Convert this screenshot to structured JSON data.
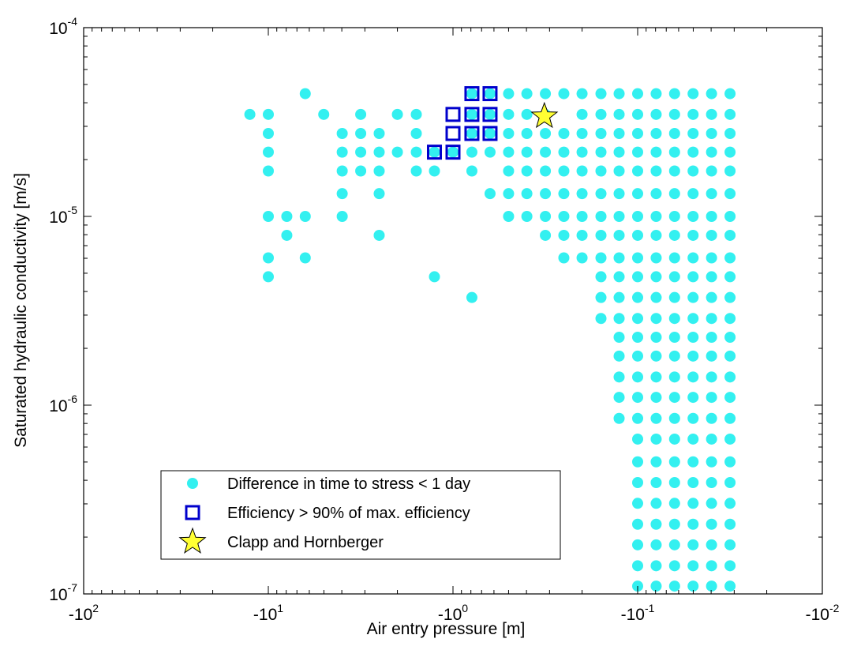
{
  "chart_data": {
    "type": "scatter",
    "xlabel": "Air entry pressure [m]",
    "ylabel": "Saturated hydraulic conductivity [m/s]",
    "x_scale": "log (negative values)",
    "y_scale": "log",
    "xlim": [
      -100,
      -0.01
    ],
    "ylim": [
      1e-07,
      0.0001
    ],
    "x_ticks": [
      {
        "base": "-10",
        "exp": "2",
        "value": -100
      },
      {
        "base": "-10",
        "exp": "1",
        "value": -10
      },
      {
        "base": "-10",
        "exp": "0",
        "value": -1
      },
      {
        "base": "-10",
        "exp": "-1",
        "value": -0.1
      },
      {
        "base": "-10",
        "exp": "-2",
        "value": -0.01
      }
    ],
    "y_ticks": [
      {
        "base": "10",
        "exp": "-4",
        "value": 0.0001
      },
      {
        "base": "10",
        "exp": "-5",
        "value": 1e-05
      },
      {
        "base": "10",
        "exp": "-6",
        "value": 1e-06
      },
      {
        "base": "10",
        "exp": "-7",
        "value": 1e-07
      }
    ],
    "grid": false,
    "legend_position": "bottom-left",
    "series": [
      {
        "name": "Difference in time to stress < 1 day",
        "marker": "filled-circle",
        "color": "#33f0f0",
        "points": [
          [
            -12.59,
            3.47e-05
          ],
          [
            -10,
            3.47e-05
          ],
          [
            -10,
            2.75e-05
          ],
          [
            -10,
            2.19e-05
          ],
          [
            -10,
            1.74e-05
          ],
          [
            -10,
            1e-05
          ],
          [
            -10,
            6.03e-06
          ],
          [
            -10,
            4.79e-06
          ],
          [
            -7.94,
            1e-05
          ],
          [
            -7.94,
            7.94e-06
          ],
          [
            -6.31,
            4.47e-05
          ],
          [
            -6.31,
            1e-05
          ],
          [
            -6.31,
            6.03e-06
          ],
          [
            -5.01,
            3.47e-05
          ],
          [
            -3.98,
            2.75e-05
          ],
          [
            -3.98,
            2.19e-05
          ],
          [
            -3.98,
            1.74e-05
          ],
          [
            -3.98,
            1.32e-05
          ],
          [
            -3.98,
            1e-05
          ],
          [
            -3.16,
            3.47e-05
          ],
          [
            -3.16,
            2.75e-05
          ],
          [
            -3.16,
            2.19e-05
          ],
          [
            -3.16,
            1.74e-05
          ],
          [
            -2.51,
            2.75e-05
          ],
          [
            -2.51,
            2.19e-05
          ],
          [
            -2.51,
            1.74e-05
          ],
          [
            -2.51,
            1.32e-05
          ],
          [
            -2.51,
            7.94e-06
          ],
          [
            -2.0,
            3.47e-05
          ],
          [
            -2.0,
            2.19e-05
          ],
          [
            -1.58,
            3.47e-05
          ],
          [
            -1.58,
            2.75e-05
          ],
          [
            -1.58,
            2.19e-05
          ],
          [
            -1.58,
            1.74e-05
          ],
          [
            -1.26,
            2.19e-05
          ],
          [
            -1.26,
            1.74e-05
          ],
          [
            -1.26,
            4.79e-06
          ],
          [
            -1.0,
            2.19e-05
          ],
          [
            -0.79,
            4.47e-05
          ],
          [
            -0.79,
            3.47e-05
          ],
          [
            -0.79,
            2.75e-05
          ],
          [
            -0.79,
            2.19e-05
          ],
          [
            -0.79,
            1.74e-05
          ],
          [
            -0.79,
            3.72e-06
          ],
          [
            -0.63,
            4.47e-05
          ],
          [
            -0.63,
            3.47e-05
          ],
          [
            -0.63,
            2.75e-05
          ],
          [
            -0.63,
            2.19e-05
          ],
          [
            -0.63,
            1.32e-05
          ],
          [
            -0.5,
            4.47e-05
          ],
          [
            -0.5,
            3.47e-05
          ],
          [
            -0.5,
            2.75e-05
          ],
          [
            -0.5,
            2.19e-05
          ],
          [
            -0.5,
            1.74e-05
          ],
          [
            -0.5,
            1.32e-05
          ],
          [
            -0.5,
            1e-05
          ],
          [
            -0.398,
            4.47e-05
          ],
          [
            -0.398,
            3.47e-05
          ],
          [
            -0.398,
            2.75e-05
          ],
          [
            -0.398,
            2.19e-05
          ],
          [
            -0.398,
            1.74e-05
          ],
          [
            -0.398,
            1.32e-05
          ],
          [
            -0.398,
            1e-05
          ],
          [
            -0.316,
            4.47e-05
          ],
          [
            -0.316,
            3.47e-05
          ],
          [
            -0.316,
            2.75e-05
          ],
          [
            -0.316,
            2.19e-05
          ],
          [
            -0.316,
            1.74e-05
          ],
          [
            -0.316,
            1.32e-05
          ],
          [
            -0.316,
            1e-05
          ],
          [
            -0.316,
            7.94e-06
          ],
          [
            -0.251,
            4.47e-05
          ],
          [
            -0.251,
            2.75e-05
          ],
          [
            -0.251,
            2.19e-05
          ],
          [
            -0.251,
            1.74e-05
          ],
          [
            -0.251,
            1.32e-05
          ],
          [
            -0.251,
            1e-05
          ],
          [
            -0.251,
            7.94e-06
          ],
          [
            -0.251,
            6.03e-06
          ],
          [
            -0.2,
            4.47e-05
          ],
          [
            -0.2,
            3.47e-05
          ],
          [
            -0.2,
            2.75e-05
          ],
          [
            -0.2,
            2.19e-05
          ],
          [
            -0.2,
            1.74e-05
          ],
          [
            -0.2,
            1.32e-05
          ],
          [
            -0.2,
            1e-05
          ],
          [
            -0.2,
            7.94e-06
          ],
          [
            -0.2,
            6.03e-06
          ],
          [
            -0.158,
            4.47e-05
          ],
          [
            -0.158,
            3.47e-05
          ],
          [
            -0.158,
            2.75e-05
          ],
          [
            -0.158,
            2.19e-05
          ],
          [
            -0.158,
            1.74e-05
          ],
          [
            -0.158,
            1.32e-05
          ],
          [
            -0.158,
            1e-05
          ],
          [
            -0.158,
            7.94e-06
          ],
          [
            -0.158,
            6.03e-06
          ],
          [
            -0.158,
            4.79e-06
          ],
          [
            -0.158,
            3.72e-06
          ],
          [
            -0.158,
            2.88e-06
          ],
          [
            -0.126,
            4.47e-05
          ],
          [
            -0.126,
            3.47e-05
          ],
          [
            -0.126,
            2.75e-05
          ],
          [
            -0.126,
            2.19e-05
          ],
          [
            -0.126,
            1.74e-05
          ],
          [
            -0.126,
            1.32e-05
          ],
          [
            -0.126,
            1e-05
          ],
          [
            -0.126,
            7.94e-06
          ],
          [
            -0.126,
            6.03e-06
          ],
          [
            -0.126,
            4.79e-06
          ],
          [
            -0.126,
            3.72e-06
          ],
          [
            -0.126,
            2.88e-06
          ],
          [
            -0.126,
            2.29e-06
          ],
          [
            -0.126,
            1.82e-06
          ],
          [
            -0.126,
            1.41e-06
          ],
          [
            -0.126,
            1.1e-06
          ],
          [
            -0.126,
            8.51e-07
          ],
          [
            -0.1,
            4.47e-05
          ],
          [
            -0.1,
            3.47e-05
          ],
          [
            -0.1,
            2.75e-05
          ],
          [
            -0.1,
            2.19e-05
          ],
          [
            -0.1,
            1.74e-05
          ],
          [
            -0.1,
            1.32e-05
          ],
          [
            -0.1,
            1e-05
          ],
          [
            -0.1,
            7.94e-06
          ],
          [
            -0.1,
            6.03e-06
          ],
          [
            -0.1,
            4.79e-06
          ],
          [
            -0.1,
            3.72e-06
          ],
          [
            -0.1,
            2.88e-06
          ],
          [
            -0.1,
            2.29e-06
          ],
          [
            -0.1,
            1.82e-06
          ],
          [
            -0.1,
            1.41e-06
          ],
          [
            -0.1,
            1.1e-06
          ],
          [
            -0.1,
            8.51e-07
          ],
          [
            -0.1,
            6.61e-07
          ],
          [
            -0.1,
            5.01e-07
          ],
          [
            -0.1,
            3.89e-07
          ],
          [
            -0.1,
            3.02e-07
          ],
          [
            -0.1,
            2.34e-07
          ],
          [
            -0.1,
            1.82e-07
          ],
          [
            -0.1,
            1.41e-07
          ],
          [
            -0.1,
            1.1e-07
          ],
          [
            -0.0794,
            4.47e-05
          ],
          [
            -0.0794,
            3.47e-05
          ],
          [
            -0.0794,
            2.75e-05
          ],
          [
            -0.0794,
            2.19e-05
          ],
          [
            -0.0794,
            1.74e-05
          ],
          [
            -0.0794,
            1.32e-05
          ],
          [
            -0.0794,
            1e-05
          ],
          [
            -0.0794,
            7.94e-06
          ],
          [
            -0.0794,
            6.03e-06
          ],
          [
            -0.0794,
            4.79e-06
          ],
          [
            -0.0794,
            3.72e-06
          ],
          [
            -0.0794,
            2.88e-06
          ],
          [
            -0.0794,
            2.29e-06
          ],
          [
            -0.0794,
            1.82e-06
          ],
          [
            -0.0794,
            1.41e-06
          ],
          [
            -0.0794,
            1.1e-06
          ],
          [
            -0.0794,
            8.51e-07
          ],
          [
            -0.0794,
            6.61e-07
          ],
          [
            -0.0794,
            5.01e-07
          ],
          [
            -0.0794,
            3.89e-07
          ],
          [
            -0.0794,
            3.02e-07
          ],
          [
            -0.0794,
            2.34e-07
          ],
          [
            -0.0794,
            1.82e-07
          ],
          [
            -0.0794,
            1.41e-07
          ],
          [
            -0.0794,
            1.1e-07
          ],
          [
            -0.0631,
            4.47e-05
          ],
          [
            -0.0631,
            3.47e-05
          ],
          [
            -0.0631,
            2.75e-05
          ],
          [
            -0.0631,
            2.19e-05
          ],
          [
            -0.0631,
            1.74e-05
          ],
          [
            -0.0631,
            1.32e-05
          ],
          [
            -0.0631,
            1e-05
          ],
          [
            -0.0631,
            7.94e-06
          ],
          [
            -0.0631,
            6.03e-06
          ],
          [
            -0.0631,
            4.79e-06
          ],
          [
            -0.0631,
            3.72e-06
          ],
          [
            -0.0631,
            2.88e-06
          ],
          [
            -0.0631,
            2.29e-06
          ],
          [
            -0.0631,
            1.82e-06
          ],
          [
            -0.0631,
            1.41e-06
          ],
          [
            -0.0631,
            1.1e-06
          ],
          [
            -0.0631,
            8.51e-07
          ],
          [
            -0.0631,
            6.61e-07
          ],
          [
            -0.0631,
            5.01e-07
          ],
          [
            -0.0631,
            3.89e-07
          ],
          [
            -0.0631,
            3.02e-07
          ],
          [
            -0.0631,
            2.34e-07
          ],
          [
            -0.0631,
            1.82e-07
          ],
          [
            -0.0631,
            1.41e-07
          ],
          [
            -0.0631,
            1.1e-07
          ],
          [
            -0.0501,
            4.47e-05
          ],
          [
            -0.0501,
            3.47e-05
          ],
          [
            -0.0501,
            2.75e-05
          ],
          [
            -0.0501,
            2.19e-05
          ],
          [
            -0.0501,
            1.74e-05
          ],
          [
            -0.0501,
            1.32e-05
          ],
          [
            -0.0501,
            1e-05
          ],
          [
            -0.0501,
            7.94e-06
          ],
          [
            -0.0501,
            6.03e-06
          ],
          [
            -0.0501,
            4.79e-06
          ],
          [
            -0.0501,
            3.72e-06
          ],
          [
            -0.0501,
            2.88e-06
          ],
          [
            -0.0501,
            2.29e-06
          ],
          [
            -0.0501,
            1.82e-06
          ],
          [
            -0.0501,
            1.41e-06
          ],
          [
            -0.0501,
            1.1e-06
          ],
          [
            -0.0501,
            8.51e-07
          ],
          [
            -0.0501,
            6.61e-07
          ],
          [
            -0.0501,
            5.01e-07
          ],
          [
            -0.0501,
            3.89e-07
          ],
          [
            -0.0501,
            3.02e-07
          ],
          [
            -0.0501,
            2.34e-07
          ],
          [
            -0.0501,
            1.82e-07
          ],
          [
            -0.0501,
            1.41e-07
          ],
          [
            -0.0501,
            1.1e-07
          ],
          [
            -0.0398,
            4.47e-05
          ],
          [
            -0.0398,
            3.47e-05
          ],
          [
            -0.0398,
            2.75e-05
          ],
          [
            -0.0398,
            2.19e-05
          ],
          [
            -0.0398,
            1.74e-05
          ],
          [
            -0.0398,
            1.32e-05
          ],
          [
            -0.0398,
            1e-05
          ],
          [
            -0.0398,
            7.94e-06
          ],
          [
            -0.0398,
            6.03e-06
          ],
          [
            -0.0398,
            4.79e-06
          ],
          [
            -0.0398,
            3.72e-06
          ],
          [
            -0.0398,
            2.88e-06
          ],
          [
            -0.0398,
            2.29e-06
          ],
          [
            -0.0398,
            1.82e-06
          ],
          [
            -0.0398,
            1.41e-06
          ],
          [
            -0.0398,
            1.1e-06
          ],
          [
            -0.0398,
            8.51e-07
          ],
          [
            -0.0398,
            6.61e-07
          ],
          [
            -0.0398,
            5.01e-07
          ],
          [
            -0.0398,
            3.89e-07
          ],
          [
            -0.0398,
            3.02e-07
          ],
          [
            -0.0398,
            2.34e-07
          ],
          [
            -0.0398,
            1.82e-07
          ],
          [
            -0.0398,
            1.41e-07
          ],
          [
            -0.0398,
            1.1e-07
          ],
          [
            -0.0316,
            4.47e-05
          ],
          [
            -0.0316,
            3.47e-05
          ],
          [
            -0.0316,
            2.75e-05
          ],
          [
            -0.0316,
            2.19e-05
          ],
          [
            -0.0316,
            1.74e-05
          ],
          [
            -0.0316,
            1.32e-05
          ],
          [
            -0.0316,
            1e-05
          ],
          [
            -0.0316,
            7.94e-06
          ],
          [
            -0.0316,
            6.03e-06
          ],
          [
            -0.0316,
            4.79e-06
          ],
          [
            -0.0316,
            3.72e-06
          ],
          [
            -0.0316,
            2.88e-06
          ],
          [
            -0.0316,
            2.29e-06
          ],
          [
            -0.0316,
            1.82e-06
          ],
          [
            -0.0316,
            1.41e-06
          ],
          [
            -0.0316,
            1.1e-06
          ],
          [
            -0.0316,
            8.51e-07
          ],
          [
            -0.0316,
            6.61e-07
          ],
          [
            -0.0316,
            5.01e-07
          ],
          [
            -0.0316,
            3.89e-07
          ],
          [
            -0.0316,
            3.02e-07
          ],
          [
            -0.0316,
            2.34e-07
          ],
          [
            -0.0316,
            1.82e-07
          ],
          [
            -0.0316,
            1.41e-07
          ],
          [
            -0.0316,
            1.1e-07
          ]
        ]
      },
      {
        "name": "Efficiency > 90% of max. efficiency",
        "marker": "open-square",
        "color": "#0000cc",
        "points": [
          [
            -1.26,
            2.19e-05
          ],
          [
            -1.0,
            2.19e-05
          ],
          [
            -1.0,
            2.75e-05
          ],
          [
            -1.0,
            3.47e-05
          ],
          [
            -0.79,
            2.75e-05
          ],
          [
            -0.79,
            3.47e-05
          ],
          [
            -0.79,
            4.47e-05
          ],
          [
            -0.63,
            2.75e-05
          ],
          [
            -0.63,
            3.47e-05
          ],
          [
            -0.63,
            4.47e-05
          ]
        ]
      },
      {
        "name": "Clapp and Hornberger",
        "marker": "star",
        "color": "#ffff33",
        "points": [
          [
            -0.32,
            3.39e-05
          ]
        ]
      }
    ]
  }
}
